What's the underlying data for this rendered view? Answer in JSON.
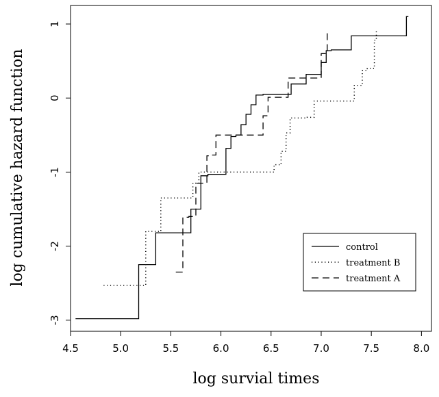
{
  "chart_data": {
    "type": "line",
    "xlabel": "log survial times",
    "ylabel": "log cumulative hazard function",
    "xlim": [
      4.5,
      8.1
    ],
    "ylim": [
      -3.15,
      1.25
    ],
    "x_ticks": [
      4.5,
      5.0,
      5.5,
      6.0,
      6.5,
      7.0,
      7.5,
      8.0
    ],
    "x_tick_labels": [
      "4.5",
      "5.0",
      "5.5",
      "6.0",
      "6.5",
      "7.0",
      "7.5",
      "8.0"
    ],
    "y_ticks": [
      -3,
      -2,
      -1,
      0,
      1
    ],
    "y_tick_labels": [
      "-3",
      "-2",
      "-1",
      "0",
      "1"
    ],
    "grid": false,
    "legend_position": "bottom-right",
    "series": [
      {
        "name": "control",
        "style": "solid",
        "step": true,
        "x": [
          4.55,
          5.18,
          5.35,
          5.7,
          5.8,
          5.87,
          6.05,
          6.1,
          6.15,
          6.2,
          6.25,
          6.3,
          6.35,
          6.42,
          6.7,
          6.85,
          7.0,
          7.05,
          7.1,
          7.3,
          7.85,
          7.87
        ],
        "y": [
          -2.98,
          -2.25,
          -1.82,
          -1.5,
          -1.05,
          -1.03,
          -0.68,
          -0.52,
          -0.5,
          -0.36,
          -0.22,
          -0.09,
          0.04,
          0.05,
          0.19,
          0.32,
          0.48,
          0.64,
          0.65,
          0.84,
          1.1,
          1.1
        ]
      },
      {
        "name": "treatment B",
        "style": "dotted",
        "step": true,
        "x": [
          4.83,
          5.25,
          5.4,
          5.72,
          5.78,
          6.53,
          6.6,
          6.65,
          6.69,
          6.86,
          6.93,
          7.33,
          7.41,
          7.46,
          7.53,
          7.55
        ],
        "y": [
          -2.53,
          -1.8,
          -1.35,
          -1.15,
          -1.0,
          -0.9,
          -0.72,
          -0.47,
          -0.27,
          -0.26,
          -0.04,
          0.17,
          0.37,
          0.4,
          0.78,
          0.92
        ]
      },
      {
        "name": "treatment A",
        "style": "dashed",
        "step": true,
        "x": [
          5.55,
          5.62,
          5.68,
          5.75,
          5.86,
          5.9,
          5.95,
          6.42,
          6.47,
          6.67,
          7.0,
          7.06
        ],
        "y": [
          -2.35,
          -1.61,
          -1.6,
          -1.15,
          -0.78,
          -0.77,
          -0.5,
          -0.24,
          0.01,
          0.27,
          0.6,
          0.89
        ]
      }
    ]
  }
}
